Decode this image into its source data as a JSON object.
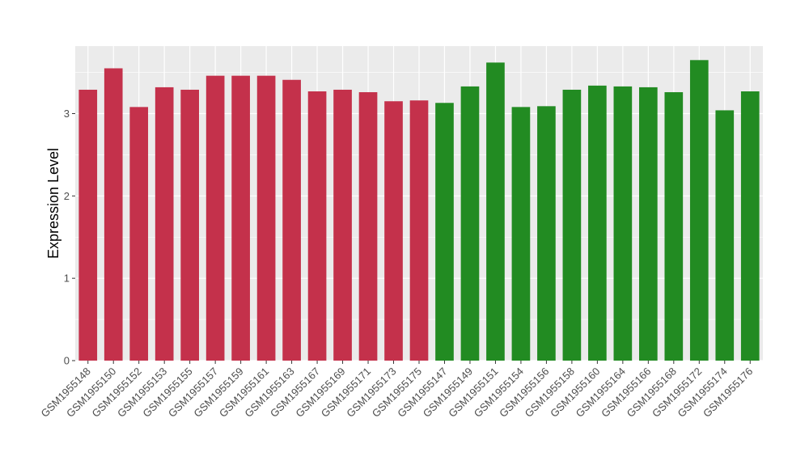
{
  "chart_data": {
    "type": "bar",
    "title": "",
    "xlabel": "",
    "ylabel": "Expression Level",
    "ylim": [
      0,
      3.82
    ],
    "yticks": [
      0,
      1,
      2,
      3
    ],
    "grid": true,
    "legend": "none",
    "categories": [
      "GSM1955148",
      "GSM1955150",
      "GSM1955152",
      "GSM1955153",
      "GSM1955155",
      "GSM1955157",
      "GSM1955159",
      "GSM1955161",
      "GSM1955163",
      "GSM1955167",
      "GSM1955169",
      "GSM1955171",
      "GSM1955173",
      "GSM1955175",
      "GSM1955147",
      "GSM1955149",
      "GSM1955151",
      "GSM1955154",
      "GSM1955156",
      "GSM1955158",
      "GSM1955160",
      "GSM1955164",
      "GSM1955166",
      "GSM1955168",
      "GSM1955172",
      "GSM1955174",
      "GSM1955176"
    ],
    "values": [
      3.29,
      3.55,
      3.08,
      3.32,
      3.29,
      3.46,
      3.46,
      3.46,
      3.41,
      3.27,
      3.29,
      3.26,
      3.15,
      3.16,
      3.13,
      3.33,
      3.62,
      3.08,
      3.09,
      3.29,
      3.34,
      3.33,
      3.32,
      3.26,
      3.65,
      3.04,
      3.27
    ],
    "group_sizes": [
      14,
      13
    ],
    "colors": [
      "#c4314b",
      "#228b22"
    ],
    "panel_background": "#ebebeb",
    "gridline_color": "#ffffff"
  }
}
